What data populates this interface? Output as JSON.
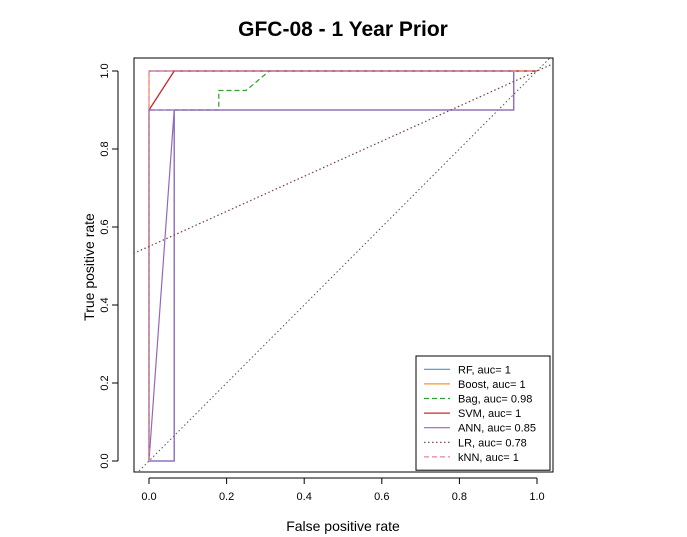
{
  "chart_data": {
    "type": "line",
    "title": "GFC-08 - 1 Year Prior",
    "xlabel": "False positive rate",
    "ylabel": "True positive rate",
    "xlim": [
      0,
      1
    ],
    "ylim": [
      0,
      1
    ],
    "x_ticks": [
      "0.0",
      "0.2",
      "0.4",
      "0.6",
      "0.8",
      "1.0"
    ],
    "y_ticks": [
      "0.0",
      "0.2",
      "0.4",
      "0.6",
      "0.8",
      "1.0"
    ],
    "grid": false,
    "legend_position": "bottom-right",
    "reference_line": {
      "points": [
        [
          0,
          0
        ],
        [
          1,
          1
        ]
      ],
      "color": "#555555",
      "style": "dotted"
    },
    "series": [
      {
        "name": "RF, auc= 1",
        "color": "#4f8fd6",
        "style": "solid",
        "points": [
          [
            0,
            0
          ],
          [
            0,
            0.9
          ],
          [
            0.065,
            1.0
          ],
          [
            0.94,
            1.0
          ],
          [
            0.94,
            0.9
          ],
          [
            0.065,
            0.9
          ],
          [
            0.065,
            0
          ],
          [
            0,
            0
          ]
        ]
      },
      {
        "name": "Boost, auc= 1",
        "color": "#f29a2e",
        "style": "solid",
        "points": [
          [
            0,
            0
          ],
          [
            0,
            1
          ],
          [
            1,
            1
          ]
        ]
      },
      {
        "name": "Bag, auc= 0.98",
        "color": "#2ca02c",
        "style": "dashed",
        "points": [
          [
            0,
            0
          ],
          [
            0,
            0.9
          ],
          [
            0.05,
            0.9
          ],
          [
            0.18,
            0.9
          ],
          [
            0.18,
            0.95
          ],
          [
            0.25,
            0.95
          ],
          [
            0.31,
            1.0
          ],
          [
            1,
            1
          ]
        ]
      },
      {
        "name": "SVM, auc= 1",
        "color": "#d62728",
        "style": "solid",
        "points": [
          [
            0,
            0.9
          ],
          [
            0.065,
            1.0
          ],
          [
            1,
            1
          ]
        ]
      },
      {
        "name": "ANN, auc= 0.85",
        "color": "#9467bd",
        "style": "solid",
        "points": [
          [
            0,
            0
          ],
          [
            0,
            0.9
          ],
          [
            0.065,
            0.9
          ],
          [
            0.065,
            0
          ],
          [
            0,
            0
          ],
          [
            0.065,
            0.9
          ],
          [
            0.94,
            0.9
          ],
          [
            0.94,
            1.0
          ],
          [
            0,
            1.0
          ]
        ]
      },
      {
        "name": "LR, auc= 0.78",
        "color": "#7a3b3b",
        "style": "dotted",
        "points": [
          [
            0,
            0.55
          ],
          [
            1,
            1
          ]
        ]
      },
      {
        "name": "kNN, auc= 1",
        "color": "#e8829b",
        "style": "dashed",
        "points": [
          [
            0,
            0
          ],
          [
            0,
            1
          ],
          [
            1,
            1
          ]
        ]
      }
    ]
  }
}
